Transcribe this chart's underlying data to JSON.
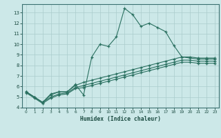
{
  "xlabel": "Humidex (Indice chaleur)",
  "bg_color": "#cce8e8",
  "grid_color": "#aacccc",
  "line_color": "#2a7060",
  "xlim": [
    -0.5,
    23.5
  ],
  "ylim": [
    4.0,
    13.8
  ],
  "xticks": [
    0,
    1,
    2,
    3,
    4,
    5,
    6,
    7,
    8,
    9,
    10,
    11,
    12,
    13,
    14,
    15,
    16,
    17,
    18,
    19,
    20,
    21,
    22,
    23
  ],
  "yticks": [
    4,
    5,
    6,
    7,
    8,
    9,
    10,
    11,
    12,
    13
  ],
  "line1_x": [
    0,
    1,
    2,
    3,
    4,
    5,
    6,
    7,
    8,
    9,
    10,
    11,
    12,
    13,
    14,
    15,
    16,
    17,
    18,
    19,
    20,
    21,
    22,
    23
  ],
  "line1_y": [
    5.5,
    5.0,
    4.5,
    5.3,
    5.5,
    5.5,
    6.2,
    5.2,
    8.8,
    10.0,
    9.8,
    10.7,
    13.4,
    12.8,
    11.7,
    12.0,
    11.6,
    11.2,
    9.9,
    8.8,
    8.7,
    8.6,
    8.6,
    8.6
  ],
  "line2_x": [
    0,
    1,
    2,
    3,
    4,
    5,
    6,
    7,
    8,
    9,
    10,
    11,
    12,
    13,
    14,
    15,
    16,
    17,
    18,
    19,
    20,
    21,
    22,
    23
  ],
  "line2_y": [
    5.5,
    5.0,
    4.5,
    5.2,
    5.5,
    5.5,
    6.1,
    6.4,
    6.6,
    6.8,
    7.0,
    7.2,
    7.4,
    7.6,
    7.8,
    8.0,
    8.2,
    8.4,
    8.6,
    8.8,
    8.8,
    8.7,
    8.7,
    8.7
  ],
  "line3_x": [
    0,
    1,
    2,
    3,
    4,
    5,
    6,
    7,
    8,
    9,
    10,
    11,
    12,
    13,
    14,
    15,
    16,
    17,
    18,
    19,
    20,
    21,
    22,
    23
  ],
  "line3_y": [
    5.5,
    5.0,
    4.5,
    5.0,
    5.3,
    5.4,
    5.9,
    6.1,
    6.3,
    6.5,
    6.7,
    6.9,
    7.1,
    7.3,
    7.5,
    7.7,
    7.9,
    8.1,
    8.3,
    8.5,
    8.5,
    8.4,
    8.4,
    8.4
  ],
  "line4_x": [
    0,
    1,
    2,
    3,
    4,
    5,
    6,
    7,
    8,
    9,
    10,
    11,
    12,
    13,
    14,
    15,
    16,
    17,
    18,
    19,
    20,
    21,
    22,
    23
  ],
  "line4_y": [
    5.4,
    4.9,
    4.4,
    4.9,
    5.2,
    5.3,
    5.8,
    5.9,
    6.1,
    6.3,
    6.5,
    6.7,
    6.9,
    7.1,
    7.3,
    7.5,
    7.7,
    7.9,
    8.1,
    8.3,
    8.3,
    8.2,
    8.2,
    8.2
  ]
}
